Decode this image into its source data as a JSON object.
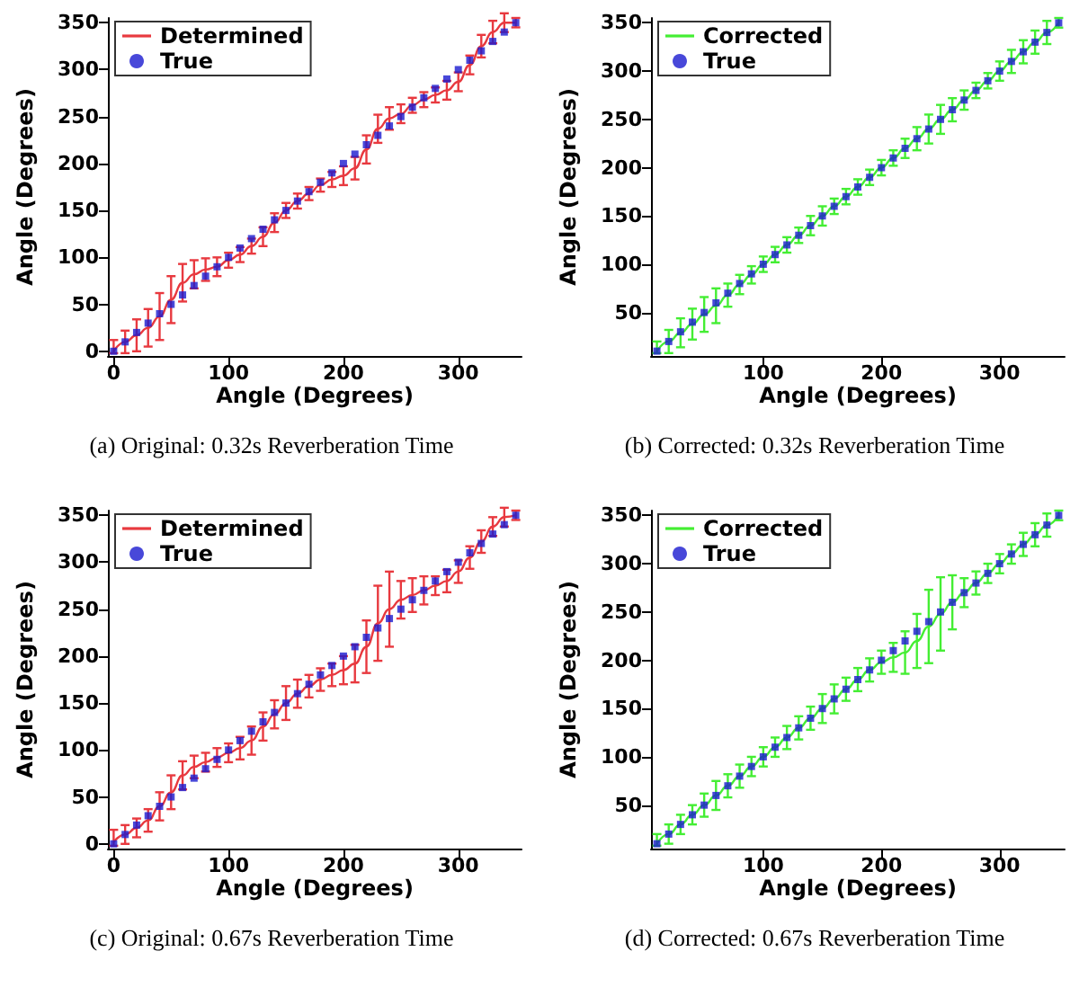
{
  "chart_data": [
    {
      "type": "line",
      "xlabel": "Angle (Degrees)",
      "ylabel": "Angle (Degrees)",
      "annotations": [
        "(a) Original: 0.32s Reverberation Time"
      ],
      "xlim": [
        -5,
        355
      ],
      "xticks": [
        0,
        100,
        200,
        300
      ],
      "ylim": [
        -5,
        355
      ],
      "yticks": [
        0,
        50,
        100,
        150,
        200,
        250,
        300,
        350
      ],
      "grid": false,
      "legend": "top left",
      "x": [
        0,
        10,
        20,
        30,
        40,
        50,
        60,
        70,
        80,
        90,
        100,
        110,
        120,
        130,
        140,
        150,
        160,
        170,
        180,
        190,
        200,
        210,
        220,
        230,
        240,
        250,
        260,
        270,
        280,
        290,
        300,
        310,
        320,
        330,
        340,
        350
      ],
      "series": [
        {
          "name": "Determined",
          "color": "#e8393f",
          "marker": "none",
          "values": [
            0,
            10,
            17,
            25,
            37,
            55,
            73,
            82,
            87,
            90,
            97,
            103,
            112,
            122,
            137,
            150,
            160,
            168,
            177,
            183,
            187,
            195,
            215,
            237,
            248,
            253,
            262,
            268,
            273,
            278,
            287,
            305,
            325,
            340,
            350,
            350
          ],
          "errors": [
            [
              -2,
              12
            ],
            12,
            17,
            20,
            25,
            25,
            20,
            15,
            12,
            10,
            8,
            8,
            8,
            10,
            10,
            8,
            8,
            7,
            7,
            8,
            10,
            12,
            15,
            15,
            12,
            10,
            8,
            8,
            8,
            10,
            10,
            10,
            12,
            12,
            10,
            5
          ]
        },
        {
          "name": "True",
          "type": "scatter",
          "color": "#1a1ad0",
          "marker": "square",
          "values": [
            0,
            10,
            20,
            30,
            40,
            50,
            60,
            70,
            80,
            90,
            100,
            110,
            120,
            130,
            140,
            150,
            160,
            170,
            180,
            190,
            200,
            210,
            220,
            230,
            240,
            250,
            260,
            270,
            280,
            290,
            300,
            310,
            320,
            330,
            340,
            350
          ]
        }
      ]
    },
    {
      "type": "line",
      "xlabel": "Angle (Degrees)",
      "ylabel": "Angle (Degrees)",
      "annotations": [
        "(b) Corrected: 0.32s Reverberation Time"
      ],
      "xlim": [
        5,
        355
      ],
      "xticks": [
        100,
        200,
        300
      ],
      "ylim": [
        5,
        355
      ],
      "yticks": [
        50,
        100,
        150,
        200,
        250,
        300,
        350
      ],
      "grid": false,
      "legend": "top left",
      "x": [
        10,
        20,
        30,
        40,
        50,
        60,
        70,
        80,
        90,
        100,
        110,
        120,
        130,
        140,
        150,
        160,
        170,
        180,
        190,
        200,
        210,
        220,
        230,
        240,
        250,
        260,
        270,
        280,
        290,
        300,
        310,
        320,
        330,
        340,
        350
      ],
      "series": [
        {
          "name": "Corrected",
          "color": "#44ee33",
          "marker": "none",
          "values": [
            10,
            20,
            29,
            38,
            48,
            57,
            68,
            79,
            89,
            100,
            110,
            120,
            130,
            140,
            150,
            160,
            170,
            180,
            190,
            200,
            210,
            220,
            230,
            240,
            250,
            260,
            270,
            280,
            290,
            300,
            310,
            320,
            330,
            340,
            350
          ],
          "errors": [
            [
              8,
              20
            ],
            12,
            15,
            16,
            18,
            18,
            12,
            10,
            9,
            8,
            8,
            8,
            8,
            10,
            10,
            8,
            8,
            8,
            8,
            8,
            8,
            10,
            12,
            15,
            15,
            12,
            10,
            8,
            8,
            10,
            12,
            12,
            12,
            12,
            5
          ]
        },
        {
          "name": "True",
          "type": "scatter",
          "color": "#1a1ad0",
          "marker": "square",
          "values": [
            10,
            20,
            30,
            40,
            50,
            60,
            70,
            80,
            90,
            100,
            110,
            120,
            130,
            140,
            150,
            160,
            170,
            180,
            190,
            200,
            210,
            220,
            230,
            240,
            250,
            260,
            270,
            280,
            290,
            300,
            310,
            320,
            330,
            340,
            350
          ]
        }
      ]
    },
    {
      "type": "line",
      "xlabel": "Angle (Degrees)",
      "ylabel": "Angle (Degrees)",
      "annotations": [
        "(c) Original: 0.67s Reverberation Time"
      ],
      "xlim": [
        -5,
        355
      ],
      "xticks": [
        0,
        100,
        200,
        300
      ],
      "ylim": [
        -5,
        355
      ],
      "yticks": [
        0,
        50,
        100,
        150,
        200,
        250,
        300,
        350
      ],
      "grid": false,
      "legend": "top left",
      "x": [
        0,
        10,
        20,
        30,
        40,
        50,
        60,
        70,
        80,
        90,
        100,
        110,
        120,
        130,
        140,
        150,
        160,
        170,
        180,
        190,
        200,
        210,
        220,
        230,
        240,
        250,
        260,
        270,
        280,
        290,
        300,
        310,
        320,
        330,
        340,
        350
      ],
      "series": [
        {
          "name": "Determined",
          "color": "#e8393f",
          "marker": "none",
          "values": [
            2,
            10,
            17,
            25,
            40,
            55,
            73,
            82,
            87,
            92,
            97,
            102,
            110,
            125,
            138,
            150,
            160,
            168,
            175,
            180,
            185,
            192,
            210,
            235,
            250,
            260,
            265,
            270,
            275,
            280,
            290,
            305,
            322,
            338,
            348,
            350
          ],
          "errors": [
            [
              -2,
              15
            ],
            10,
            10,
            12,
            15,
            18,
            15,
            12,
            10,
            10,
            10,
            12,
            15,
            15,
            15,
            18,
            15,
            12,
            12,
            12,
            15,
            20,
            28,
            40,
            40,
            20,
            18,
            15,
            10,
            12,
            12,
            12,
            12,
            10,
            10,
            5
          ]
        },
        {
          "name": "True",
          "type": "scatter",
          "color": "#1a1ad0",
          "marker": "square",
          "values": [
            0,
            10,
            20,
            30,
            40,
            50,
            60,
            70,
            80,
            90,
            100,
            110,
            120,
            130,
            140,
            150,
            160,
            170,
            180,
            190,
            200,
            210,
            220,
            230,
            240,
            250,
            260,
            270,
            280,
            290,
            300,
            310,
            320,
            330,
            340,
            350
          ]
        }
      ]
    },
    {
      "type": "line",
      "xlabel": "Angle (Degrees)",
      "ylabel": "Angle (Degrees)",
      "annotations": [
        "(d) Corrected: 0.67s Reverberation Time"
      ],
      "xlim": [
        5,
        355
      ],
      "xticks": [
        100,
        200,
        300
      ],
      "ylim": [
        5,
        355
      ],
      "yticks": [
        50,
        100,
        150,
        200,
        250,
        300,
        350
      ],
      "grid": false,
      "legend": "top left",
      "x": [
        10,
        20,
        30,
        40,
        50,
        60,
        70,
        80,
        90,
        100,
        110,
        120,
        130,
        140,
        150,
        160,
        170,
        180,
        190,
        200,
        210,
        220,
        230,
        240,
        250,
        260,
        270,
        280,
        290,
        300,
        310,
        320,
        330,
        340,
        350
      ],
      "series": [
        {
          "name": "Corrected",
          "color": "#44ee33",
          "marker": "none",
          "values": [
            10,
            20,
            30,
            40,
            50,
            60,
            70,
            80,
            90,
            100,
            110,
            120,
            130,
            140,
            150,
            160,
            170,
            180,
            190,
            198,
            203,
            208,
            220,
            235,
            248,
            260,
            270,
            280,
            290,
            300,
            310,
            320,
            330,
            340,
            350
          ],
          "errors": [
            [
              8,
              20
            ],
            10,
            10,
            10,
            12,
            15,
            12,
            12,
            10,
            10,
            10,
            12,
            12,
            12,
            15,
            15,
            12,
            12,
            12,
            12,
            15,
            22,
            28,
            38,
            38,
            28,
            15,
            12,
            10,
            10,
            10,
            12,
            12,
            12,
            5
          ]
        },
        {
          "name": "True",
          "type": "scatter",
          "color": "#1a1ad0",
          "marker": "square",
          "values": [
            10,
            20,
            30,
            40,
            50,
            60,
            70,
            80,
            90,
            100,
            110,
            120,
            130,
            140,
            150,
            160,
            170,
            180,
            190,
            200,
            210,
            220,
            230,
            240,
            250,
            260,
            270,
            280,
            290,
            300,
            310,
            320,
            330,
            340,
            350
          ]
        }
      ]
    }
  ]
}
